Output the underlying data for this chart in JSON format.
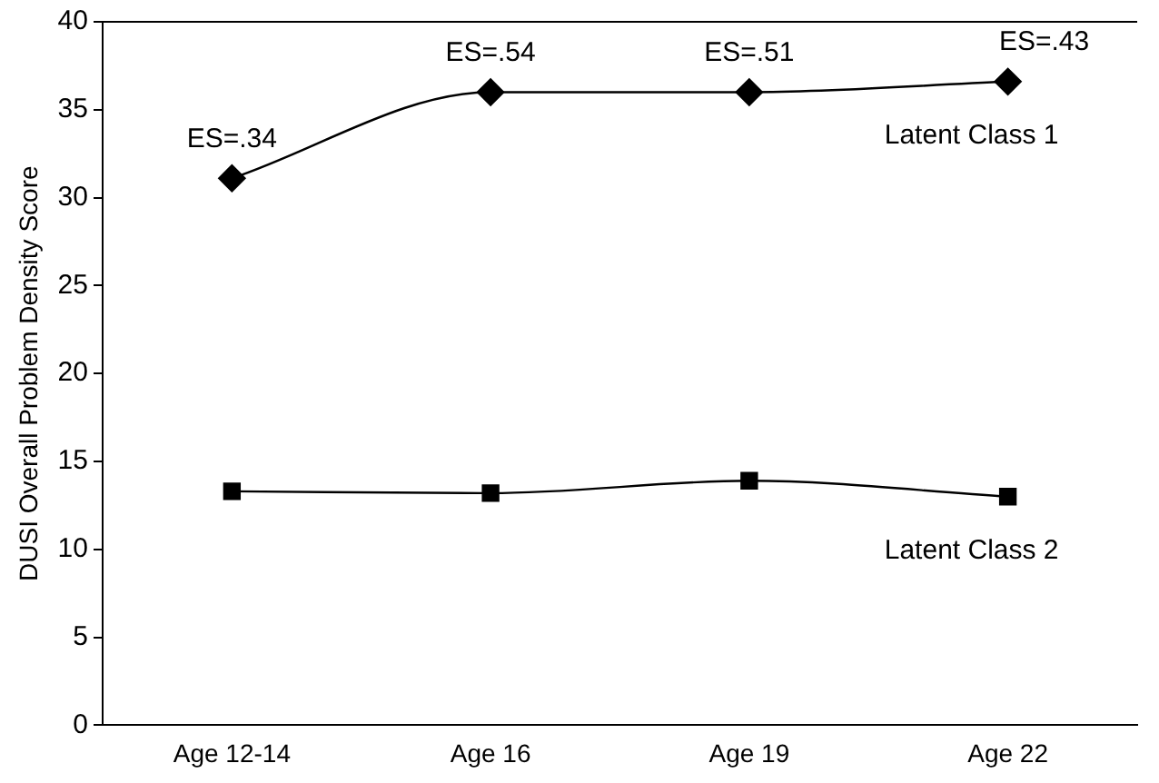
{
  "chart_data": {
    "type": "line",
    "ylabel": "DUSI Overall Problem Density Score",
    "categories": [
      "Age 12-14",
      "Age 16",
      "Age 19",
      "Age 22"
    ],
    "series": [
      {
        "name": "Latent Class 1",
        "color": "#000000",
        "marker": "diamond",
        "values": [
          31.1,
          36.0,
          36.0,
          36.6
        ]
      },
      {
        "name": "Latent Class 2",
        "color": "#000000",
        "marker": "square",
        "values": [
          13.3,
          13.2,
          13.9,
          13.0
        ]
      }
    ],
    "ylim": [
      0,
      40
    ],
    "yticks": [
      0,
      5,
      10,
      15,
      20,
      25,
      30,
      35,
      40
    ],
    "grid": false,
    "legend": false,
    "line_style": "solid",
    "annotations": [
      {
        "text": "ES=.34",
        "x": "Age 12-14",
        "y": 31.1
      },
      {
        "text": "ES=.54",
        "x": "Age 16",
        "y": 36.0
      },
      {
        "text": "ES=.51",
        "x": "Age 19",
        "y": 36.0
      },
      {
        "text": "ES=.43",
        "x": "Age 22",
        "y": 36.6
      }
    ]
  }
}
